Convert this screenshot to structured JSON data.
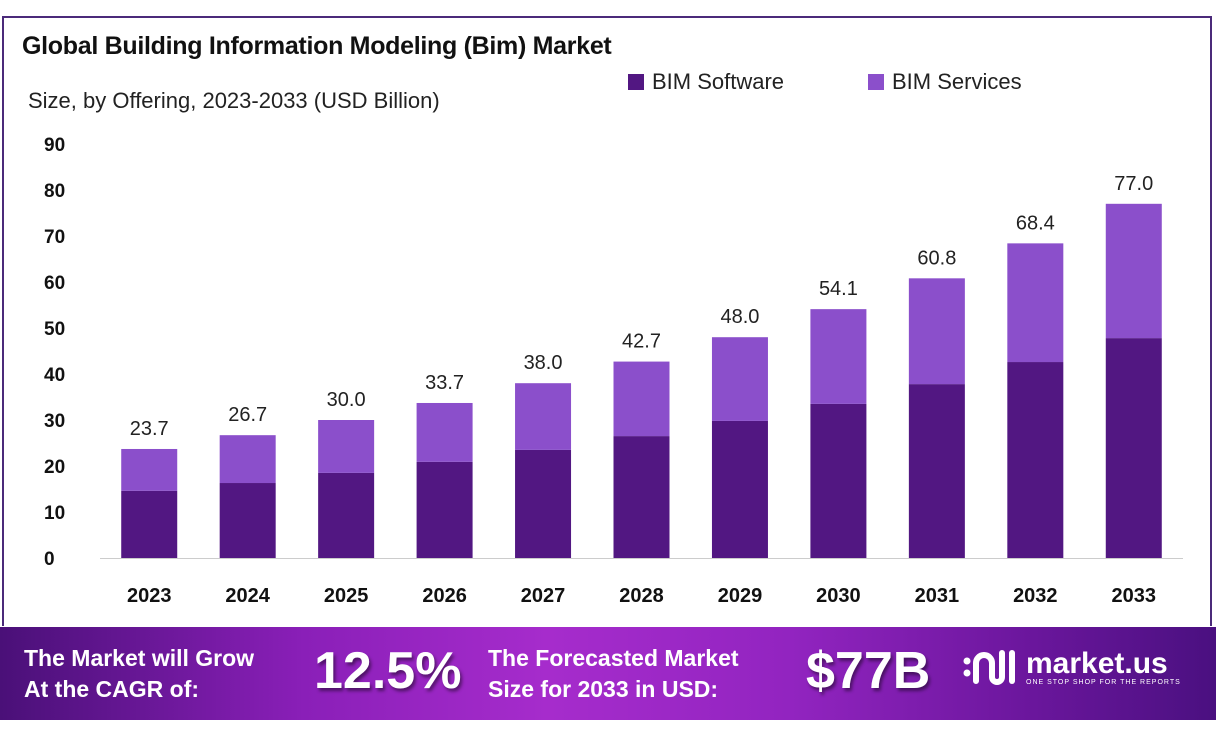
{
  "chart_data": {
    "type": "bar",
    "stacked": true,
    "title": "Global Building Information Modeling (Bim) Market",
    "subtitle": "Size, by Offering, 2023-2033 (USD Billion)",
    "categories": [
      "2023",
      "2024",
      "2025",
      "2026",
      "2027",
      "2028",
      "2029",
      "2030",
      "2031",
      "2032",
      "2033"
    ],
    "series": [
      {
        "name": "BIM Software",
        "color": "#521782",
        "values": [
          14.6,
          16.3,
          18.5,
          20.9,
          23.5,
          26.5,
          29.8,
          33.5,
          37.8,
          42.6,
          47.8
        ]
      },
      {
        "name": "BIM Services",
        "color": "#8b4fcb",
        "values": [
          9.1,
          10.4,
          11.5,
          12.8,
          14.5,
          16.2,
          18.2,
          20.6,
          23.0,
          25.8,
          29.2
        ]
      }
    ],
    "totals": [
      "23.7",
      "26.7",
      "30.0",
      "33.7",
      "38.0",
      "42.7",
      "48.0",
      "54.1",
      "60.8",
      "68.4",
      "77.0"
    ],
    "yticks": [
      "0",
      "10",
      "20",
      "30",
      "40",
      "50",
      "60",
      "70",
      "80",
      "90"
    ],
    "ylim": [
      0,
      90
    ],
    "grid": false,
    "legend": "top-right"
  },
  "banner": {
    "cagr_label_1": "The Market will Grow",
    "cagr_label_2": "At the CAGR of:",
    "cagr_value": "12.5%",
    "forecast_label_1": "The Forecasted Market",
    "forecast_label_2": "Size for 2033 in USD:",
    "forecast_value": "$77B",
    "logo_name": "market.us",
    "logo_tagline": "ONE STOP SHOP FOR THE REPORTS"
  }
}
